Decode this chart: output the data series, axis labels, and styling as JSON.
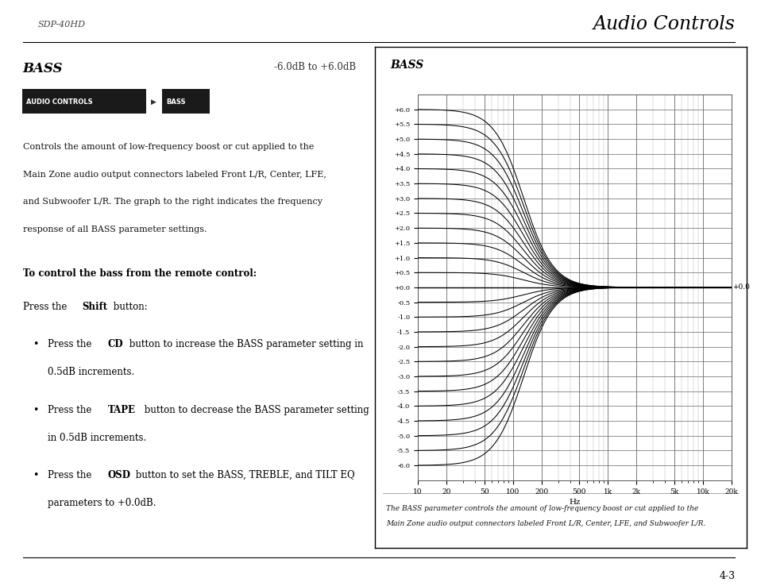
{
  "page_bg": "#ffffff",
  "header_text": "Audio Controls",
  "header_sub": "SDP-40HD",
  "bass_title": "BASS",
  "bass_range": "-6.0dB to +6.0dB",
  "body_text_lines": [
    "Controls the amount of low-frequency boost or cut applied to the",
    "Main Zone audio output connectors labeled Front L/R, Center, LFE,",
    "and Subwoofer L/R. The graph to the right indicates the frequency",
    "response of all BASS parameter settings."
  ],
  "bold_heading": "To control the bass from the remote control:",
  "graph_title": "BASS",
  "graph_xlabel": "Hz",
  "graph_ylabel_ticks": [
    "+6.0",
    "+5.5",
    "+5.0",
    "+4.5",
    "+4.0",
    "+3.5",
    "+3.0",
    "+2.5",
    "+2.0",
    "+1.5",
    "+1.0",
    "+0.5",
    "+0.0",
    "-0.5",
    "-1.0",
    "-1.5",
    "-2.0",
    "-2.5",
    "-3.0",
    "-3.5",
    "-4.0",
    "-4.5",
    "-5.0",
    "-5.5",
    "-6.0"
  ],
  "graph_yticks": [
    6.0,
    5.5,
    5.0,
    4.5,
    4.0,
    3.5,
    3.0,
    2.5,
    2.0,
    1.5,
    1.0,
    0.5,
    0.0,
    -0.5,
    -1.0,
    -1.5,
    -2.0,
    -2.5,
    -3.0,
    -3.5,
    -4.0,
    -4.5,
    -5.0,
    -5.5,
    -6.0
  ],
  "graph_xticks": [
    10,
    20,
    50,
    100,
    200,
    500,
    1000,
    2000,
    5000,
    10000,
    20000
  ],
  "graph_xticklabels": [
    "10",
    "20",
    "50",
    "100",
    "200",
    "500",
    "1k",
    "2k",
    "5k",
    "10k",
    "20k"
  ],
  "graph_annotation": "+0.0",
  "graph_caption_line1": "The BASS parameter controls the amount of low-frequency boost or cut applied to the",
  "graph_caption_line2": "Main Zone audio output connectors labeled Front L/R, Center, LFE, and Subwoofer L/R.",
  "footer_text": "4-3",
  "curve_db_values": [
    6.0,
    5.5,
    5.0,
    4.5,
    4.0,
    3.5,
    3.0,
    2.5,
    2.0,
    1.5,
    1.0,
    0.5,
    0.0,
    -0.5,
    -1.0,
    -1.5,
    -2.0,
    -2.5,
    -3.0,
    -3.5,
    -4.0,
    -4.5,
    -5.0,
    -5.5,
    -6.0
  ],
  "grid_color_major": "#666666",
  "grid_color_minor": "#bbbbbb"
}
